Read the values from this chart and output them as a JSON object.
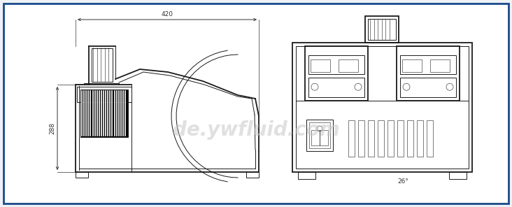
{
  "bg_color": "#eef2f7",
  "border_color": "#1a4a8a",
  "border_linewidth": 2.0,
  "drawing_color": "#1a1a1a",
  "dim_color": "#333333",
  "watermark_text": "de.ywfluid.com",
  "watermark_color": "#c8c8c8",
  "watermark_fontsize": 20,
  "dim_420_text": "420",
  "dim_288_text": "288",
  "dim_26_text": "26°",
  "lw": 0.7,
  "tlw": 1.3,
  "flw": 0.4
}
